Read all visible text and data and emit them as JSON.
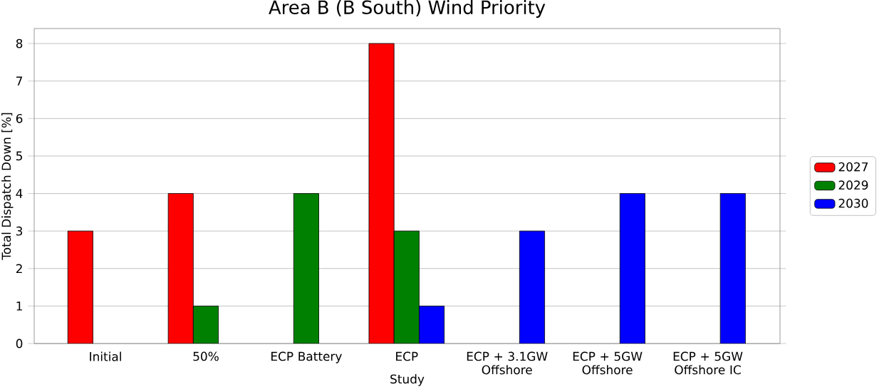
{
  "chart_data": {
    "type": "bar",
    "title": "Area B (B South) Wind Priority",
    "xlabel": "Study",
    "ylabel": "Total Dispatch Down [%]",
    "categories": [
      "Initial",
      "50%",
      "ECP Battery",
      "ECP",
      "ECP + 3.1GW Offshore",
      "ECP + 5GW Offshore",
      "ECP + 5GW Offshore IC"
    ],
    "series": [
      {
        "name": "2027",
        "color": "#ff0000",
        "values": [
          3,
          4,
          null,
          8,
          null,
          null,
          null
        ]
      },
      {
        "name": "2029",
        "color": "#008000",
        "values": [
          null,
          1,
          4,
          3,
          null,
          null,
          null
        ]
      },
      {
        "name": "2030",
        "color": "#0000ff",
        "values": [
          null,
          null,
          null,
          1,
          3,
          4,
          4
        ]
      }
    ],
    "ylim": [
      0,
      8.4
    ],
    "yticks": [
      0,
      1,
      2,
      3,
      4,
      5,
      6,
      7,
      8
    ],
    "grid": "y",
    "legend": "right"
  }
}
